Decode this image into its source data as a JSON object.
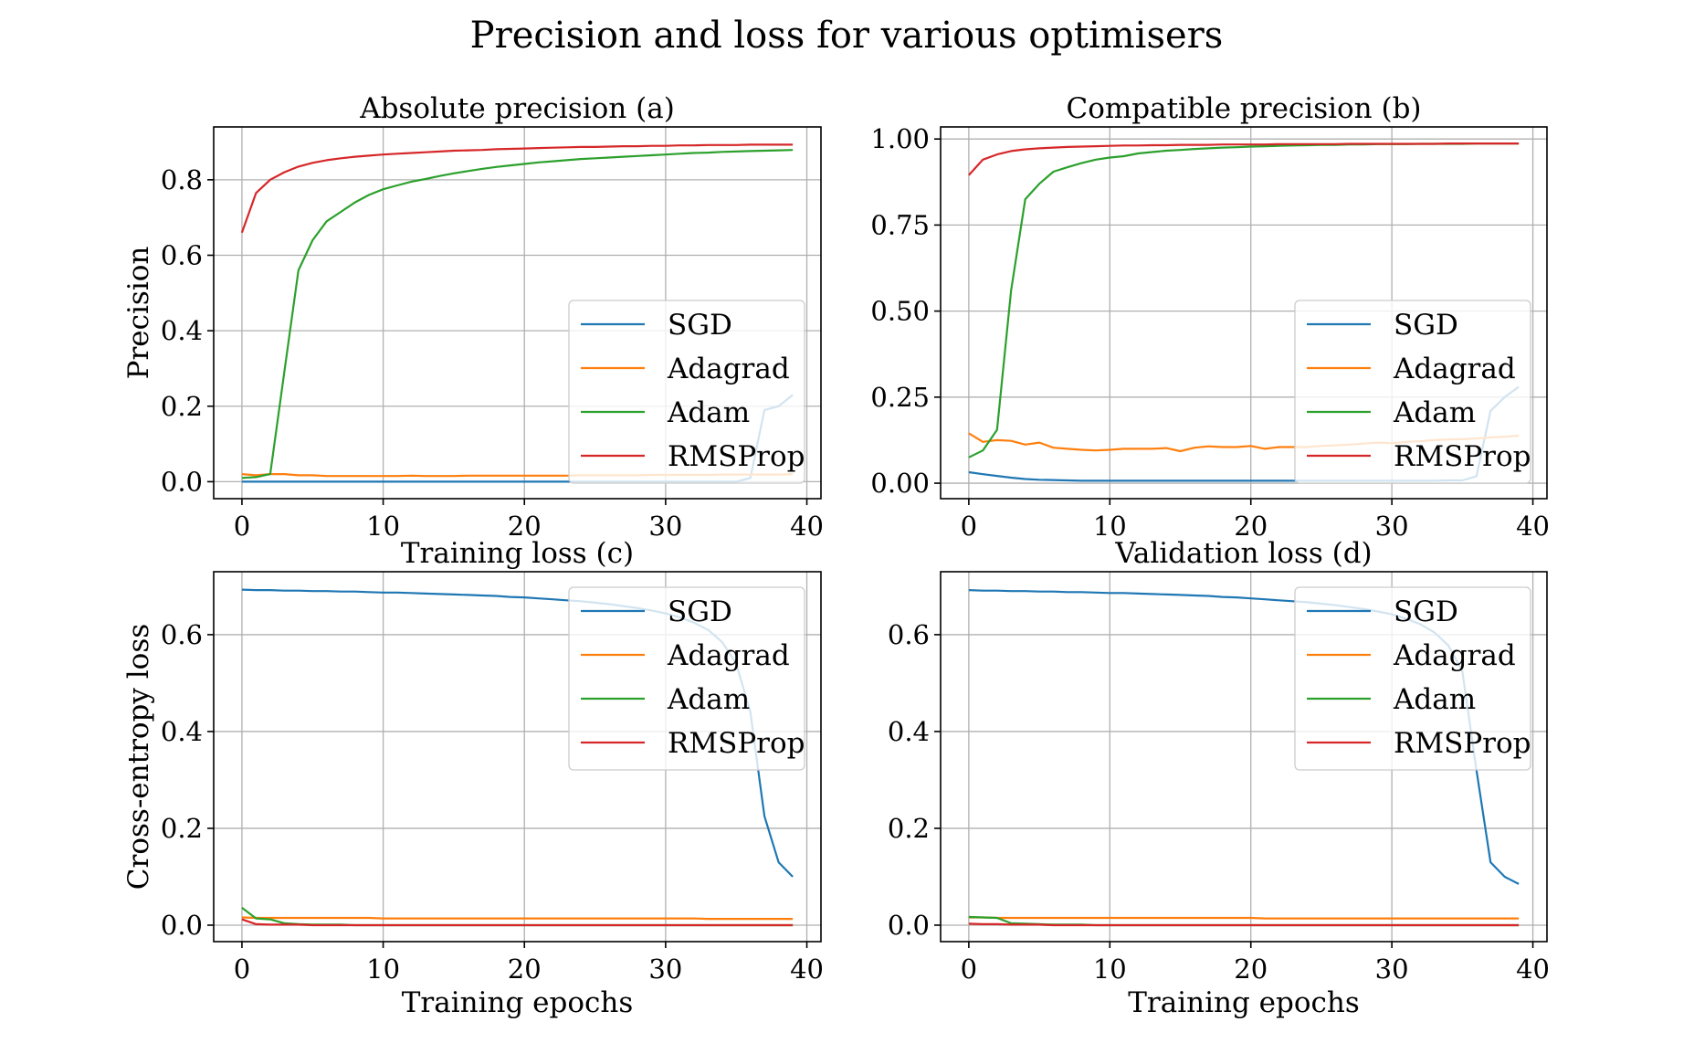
{
  "suptitle": "Precision and loss for various optimisers",
  "legend_labels": [
    "SGD",
    "Adagrad",
    "Adam",
    "RMSProp"
  ],
  "colors": {
    "SGD": "#1f77b4",
    "Adagrad": "#ff7f0e",
    "Adam": "#2ca02c",
    "RMSProp": "#d62728"
  },
  "chart_data": [
    {
      "type": "line",
      "title": "Absolute precision (a)",
      "xlabel": "",
      "ylabel": "Precision",
      "xlim": [
        -2,
        41
      ],
      "ylim": [
        -0.045,
        0.94
      ],
      "xticks": [
        0,
        10,
        20,
        30,
        40
      ],
      "yticks": [
        0.0,
        0.2,
        0.4,
        0.6,
        0.8
      ],
      "ytick_labels": [
        "0.0",
        "0.2",
        "0.4",
        "0.6",
        "0.8"
      ],
      "grid": true,
      "legend": "lower-right",
      "x": [
        0,
        1,
        2,
        3,
        4,
        5,
        6,
        7,
        8,
        9,
        10,
        11,
        12,
        13,
        14,
        15,
        16,
        17,
        18,
        19,
        20,
        21,
        22,
        23,
        24,
        25,
        26,
        27,
        28,
        29,
        30,
        31,
        32,
        33,
        34,
        35,
        36,
        37,
        38,
        39
      ],
      "series": [
        {
          "name": "SGD",
          "values": [
            0.0,
            0.0,
            0.0,
            0.0,
            0.0,
            0.0,
            0.0,
            0.0,
            0.0,
            0.0,
            0.0,
            0.0,
            0.0,
            0.0,
            0.0,
            0.0,
            0.0,
            0.0,
            0.0,
            0.0,
            0.0,
            0.0,
            0.0,
            0.0,
            0.0,
            0.0,
            0.0,
            0.0,
            0.0,
            0.0,
            0.0,
            0.0,
            0.0,
            0.0,
            0.0,
            0.0,
            0.01,
            0.19,
            0.2,
            0.23
          ]
        },
        {
          "name": "Adagrad",
          "values": [
            0.02,
            0.017,
            0.02,
            0.02,
            0.017,
            0.017,
            0.015,
            0.015,
            0.015,
            0.015,
            0.015,
            0.015,
            0.016,
            0.015,
            0.015,
            0.015,
            0.016,
            0.016,
            0.016,
            0.016,
            0.016,
            0.016,
            0.016,
            0.016,
            0.017,
            0.017,
            0.017,
            0.017,
            0.017,
            0.018,
            0.018,
            0.018,
            0.018,
            0.018,
            0.019,
            0.019,
            0.019,
            0.019,
            0.019,
            0.02
          ]
        },
        {
          "name": "Adam",
          "values": [
            0.01,
            0.012,
            0.02,
            0.29,
            0.56,
            0.64,
            0.69,
            0.715,
            0.74,
            0.76,
            0.775,
            0.785,
            0.795,
            0.802,
            0.81,
            0.817,
            0.823,
            0.829,
            0.834,
            0.838,
            0.842,
            0.846,
            0.849,
            0.852,
            0.855,
            0.857,
            0.859,
            0.861,
            0.863,
            0.865,
            0.867,
            0.869,
            0.871,
            0.872,
            0.874,
            0.875,
            0.876,
            0.877,
            0.878,
            0.879
          ]
        },
        {
          "name": "RMSProp",
          "values": [
            0.66,
            0.765,
            0.8,
            0.82,
            0.835,
            0.845,
            0.852,
            0.857,
            0.861,
            0.864,
            0.867,
            0.869,
            0.871,
            0.873,
            0.875,
            0.877,
            0.878,
            0.879,
            0.881,
            0.882,
            0.883,
            0.884,
            0.885,
            0.886,
            0.887,
            0.887,
            0.888,
            0.889,
            0.889,
            0.89,
            0.89,
            0.891,
            0.891,
            0.892,
            0.892,
            0.892,
            0.893,
            0.893,
            0.893,
            0.893
          ]
        }
      ]
    },
    {
      "type": "line",
      "title": "Compatible precision (b)",
      "xlabel": "",
      "ylabel": "",
      "xlim": [
        -2,
        41
      ],
      "ylim": [
        -0.045,
        1.035
      ],
      "xticks": [
        0,
        10,
        20,
        30,
        40
      ],
      "yticks": [
        0.0,
        0.25,
        0.5,
        0.75,
        1.0
      ],
      "ytick_labels": [
        "0.00",
        "0.25",
        "0.50",
        "0.75",
        "1.00"
      ],
      "grid": true,
      "legend": "lower-right",
      "x": [
        0,
        1,
        2,
        3,
        4,
        5,
        6,
        7,
        8,
        9,
        10,
        11,
        12,
        13,
        14,
        15,
        16,
        17,
        18,
        19,
        20,
        21,
        22,
        23,
        24,
        25,
        26,
        27,
        28,
        29,
        30,
        31,
        32,
        33,
        34,
        35,
        36,
        37,
        38,
        39
      ],
      "series": [
        {
          "name": "SGD",
          "values": [
            0.032,
            0.026,
            0.021,
            0.016,
            0.012,
            0.01,
            0.009,
            0.008,
            0.007,
            0.007,
            0.007,
            0.007,
            0.007,
            0.007,
            0.007,
            0.007,
            0.007,
            0.007,
            0.007,
            0.007,
            0.007,
            0.007,
            0.007,
            0.007,
            0.007,
            0.007,
            0.007,
            0.007,
            0.007,
            0.007,
            0.007,
            0.007,
            0.007,
            0.007,
            0.008,
            0.008,
            0.02,
            0.21,
            0.25,
            0.28
          ]
        },
        {
          "name": "Adagrad",
          "values": [
            0.145,
            0.12,
            0.125,
            0.123,
            0.112,
            0.118,
            0.103,
            0.1,
            0.097,
            0.095,
            0.097,
            0.1,
            0.1,
            0.1,
            0.102,
            0.093,
            0.103,
            0.107,
            0.105,
            0.105,
            0.108,
            0.1,
            0.105,
            0.105,
            0.105,
            0.108,
            0.11,
            0.112,
            0.115,
            0.118,
            0.116,
            0.12,
            0.122,
            0.125,
            0.127,
            0.128,
            0.13,
            0.133,
            0.135,
            0.138
          ]
        },
        {
          "name": "Adam",
          "values": [
            0.075,
            0.095,
            0.155,
            0.56,
            0.825,
            0.87,
            0.905,
            0.918,
            0.93,
            0.94,
            0.946,
            0.95,
            0.958,
            0.962,
            0.966,
            0.968,
            0.971,
            0.973,
            0.975,
            0.976,
            0.978,
            0.979,
            0.98,
            0.981,
            0.982,
            0.983,
            0.983,
            0.984,
            0.984,
            0.985,
            0.985,
            0.985,
            0.986,
            0.986,
            0.986,
            0.986,
            0.987,
            0.987,
            0.987,
            0.987
          ]
        },
        {
          "name": "RMSProp",
          "values": [
            0.895,
            0.94,
            0.955,
            0.965,
            0.97,
            0.973,
            0.975,
            0.977,
            0.978,
            0.979,
            0.98,
            0.981,
            0.981,
            0.982,
            0.982,
            0.983,
            0.983,
            0.983,
            0.984,
            0.984,
            0.984,
            0.984,
            0.985,
            0.985,
            0.985,
            0.985,
            0.985,
            0.986,
            0.986,
            0.986,
            0.986,
            0.986,
            0.986,
            0.986,
            0.987,
            0.987,
            0.987,
            0.987,
            0.987,
            0.987
          ]
        }
      ]
    },
    {
      "type": "line",
      "title": "Training loss (c)",
      "xlabel": "Training epochs",
      "ylabel": "Cross-entropy loss",
      "xlim": [
        -2,
        41
      ],
      "ylim": [
        -0.034,
        0.73
      ],
      "xticks": [
        0,
        10,
        20,
        30,
        40
      ],
      "yticks": [
        0.0,
        0.2,
        0.4,
        0.6
      ],
      "ytick_labels": [
        "0.0",
        "0.2",
        "0.4",
        "0.6"
      ],
      "grid": true,
      "legend": "upper-right",
      "x": [
        0,
        1,
        2,
        3,
        4,
        5,
        6,
        7,
        8,
        9,
        10,
        11,
        12,
        13,
        14,
        15,
        16,
        17,
        18,
        19,
        20,
        21,
        22,
        23,
        24,
        25,
        26,
        27,
        28,
        29,
        30,
        31,
        32,
        33,
        34,
        35,
        36,
        37,
        38,
        39
      ],
      "series": [
        {
          "name": "SGD",
          "values": [
            0.693,
            0.692,
            0.692,
            0.691,
            0.691,
            0.69,
            0.69,
            0.689,
            0.689,
            0.688,
            0.687,
            0.687,
            0.686,
            0.685,
            0.684,
            0.683,
            0.682,
            0.681,
            0.68,
            0.678,
            0.677,
            0.675,
            0.673,
            0.671,
            0.669,
            0.666,
            0.663,
            0.659,
            0.655,
            0.65,
            0.644,
            0.636,
            0.625,
            0.61,
            0.585,
            0.54,
            0.44,
            0.225,
            0.13,
            0.1
          ]
        },
        {
          "name": "Adagrad",
          "values": [
            0.016,
            0.015,
            0.015,
            0.015,
            0.015,
            0.015,
            0.015,
            0.015,
            0.015,
            0.015,
            0.014,
            0.014,
            0.014,
            0.014,
            0.014,
            0.014,
            0.014,
            0.014,
            0.014,
            0.014,
            0.014,
            0.014,
            0.014,
            0.014,
            0.014,
            0.014,
            0.014,
            0.014,
            0.014,
            0.014,
            0.014,
            0.014,
            0.014,
            0.013,
            0.013,
            0.013,
            0.013,
            0.013,
            0.013,
            0.013
          ]
        },
        {
          "name": "Adam",
          "values": [
            0.036,
            0.014,
            0.012,
            0.004,
            0.002,
            0.001,
            0.001,
            0.001,
            0.0,
            0.0,
            0.0,
            0.0,
            0.0,
            0.0,
            0.0,
            0.0,
            0.0,
            0.0,
            0.0,
            0.0,
            0.0,
            0.0,
            0.0,
            0.0,
            0.0,
            0.0,
            0.0,
            0.0,
            0.0,
            0.0,
            0.0,
            0.0,
            0.0,
            0.0,
            0.0,
            0.0,
            0.0,
            0.0,
            0.0,
            0.0
          ]
        },
        {
          "name": "RMSProp",
          "values": [
            0.012,
            0.002,
            0.001,
            0.001,
            0.001,
            0.0,
            0.0,
            0.0,
            0.0,
            0.0,
            0.0,
            0.0,
            0.0,
            0.0,
            0.0,
            0.0,
            0.0,
            0.0,
            0.0,
            0.0,
            0.0,
            0.0,
            0.0,
            0.0,
            0.0,
            0.0,
            0.0,
            0.0,
            0.0,
            0.0,
            0.0,
            0.0,
            0.0,
            0.0,
            0.0,
            0.0,
            0.0,
            0.0,
            0.0,
            0.0
          ]
        }
      ]
    },
    {
      "type": "line",
      "title": "Validation loss (d)",
      "xlabel": "Training epochs",
      "ylabel": "",
      "xlim": [
        -2,
        41
      ],
      "ylim": [
        -0.034,
        0.73
      ],
      "xticks": [
        0,
        10,
        20,
        30,
        40
      ],
      "yticks": [
        0.0,
        0.2,
        0.4,
        0.6
      ],
      "ytick_labels": [
        "0.0",
        "0.2",
        "0.4",
        "0.6"
      ],
      "grid": true,
      "legend": "upper-right",
      "x": [
        0,
        1,
        2,
        3,
        4,
        5,
        6,
        7,
        8,
        9,
        10,
        11,
        12,
        13,
        14,
        15,
        16,
        17,
        18,
        19,
        20,
        21,
        22,
        23,
        24,
        25,
        26,
        27,
        28,
        29,
        30,
        31,
        32,
        33,
        34,
        35,
        36,
        37,
        38,
        39
      ],
      "series": [
        {
          "name": "SGD",
          "values": [
            0.692,
            0.691,
            0.691,
            0.69,
            0.69,
            0.689,
            0.689,
            0.688,
            0.688,
            0.687,
            0.686,
            0.686,
            0.685,
            0.684,
            0.683,
            0.682,
            0.681,
            0.68,
            0.678,
            0.677,
            0.675,
            0.673,
            0.671,
            0.669,
            0.667,
            0.664,
            0.661,
            0.657,
            0.653,
            0.648,
            0.642,
            0.633,
            0.622,
            0.605,
            0.578,
            0.525,
            0.32,
            0.13,
            0.1,
            0.085
          ]
        },
        {
          "name": "Adagrad",
          "values": [
            0.016,
            0.016,
            0.015,
            0.015,
            0.015,
            0.015,
            0.015,
            0.015,
            0.015,
            0.015,
            0.015,
            0.015,
            0.015,
            0.015,
            0.015,
            0.015,
            0.015,
            0.015,
            0.015,
            0.015,
            0.015,
            0.014,
            0.014,
            0.014,
            0.014,
            0.014,
            0.014,
            0.014,
            0.014,
            0.014,
            0.014,
            0.014,
            0.014,
            0.014,
            0.014,
            0.014,
            0.014,
            0.014,
            0.014,
            0.014
          ]
        },
        {
          "name": "Adam",
          "values": [
            0.017,
            0.016,
            0.015,
            0.004,
            0.003,
            0.002,
            0.001,
            0.001,
            0.001,
            0.0,
            0.0,
            0.0,
            0.0,
            0.0,
            0.0,
            0.0,
            0.0,
            0.0,
            0.0,
            0.0,
            0.0,
            0.0,
            0.0,
            0.0,
            0.0,
            0.0,
            0.0,
            0.0,
            0.0,
            0.0,
            0.0,
            0.0,
            0.0,
            0.0,
            0.0,
            0.0,
            0.0,
            0.0,
            0.0,
            0.0
          ]
        },
        {
          "name": "RMSProp",
          "values": [
            0.003,
            0.002,
            0.002,
            0.001,
            0.001,
            0.001,
            0.0,
            0.0,
            0.0,
            0.0,
            0.0,
            0.0,
            0.0,
            0.0,
            0.0,
            0.0,
            0.0,
            0.0,
            0.0,
            0.0,
            0.0,
            0.0,
            0.0,
            0.0,
            0.0,
            0.0,
            0.0,
            0.0,
            0.0,
            0.0,
            0.0,
            0.0,
            0.0,
            0.0,
            0.0,
            0.0,
            0.0,
            0.0,
            0.0,
            0.0
          ]
        }
      ]
    }
  ]
}
